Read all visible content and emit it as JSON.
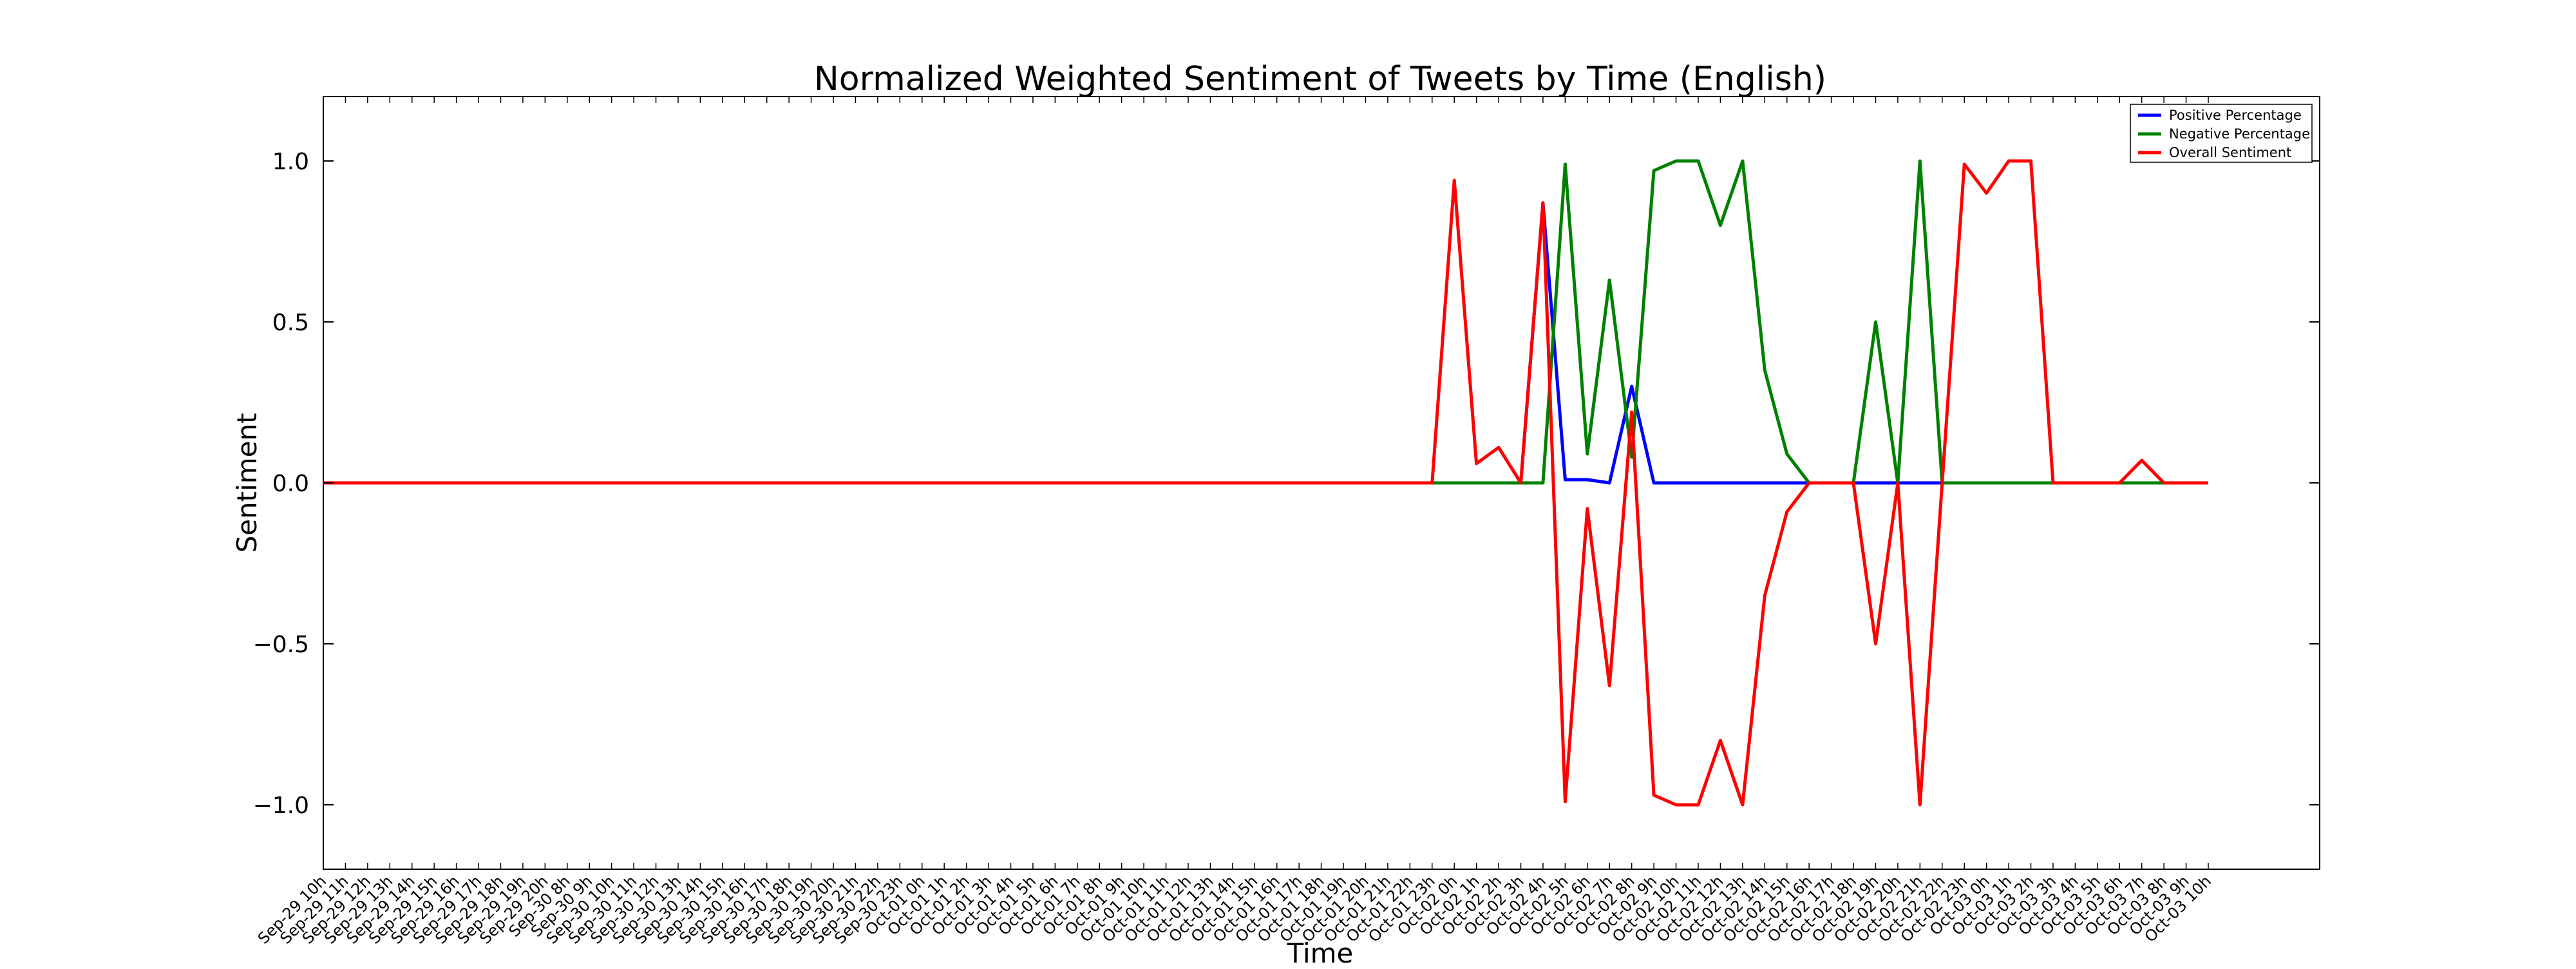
{
  "chart_data": {
    "type": "line",
    "title": "Normalized Weighted Sentiment of Tweets by Time (English)",
    "xlabel": "Time",
    "ylabel": "Sentiment",
    "ylim": [
      -1.2,
      1.2
    ],
    "yticks": [
      "−1.0",
      "−0.5",
      "0.0",
      "0.5",
      "1.0"
    ],
    "ytick_values": [
      -1.0,
      -0.5,
      0.0,
      0.5,
      1.0
    ],
    "legend_placement": "top-right",
    "grid": false,
    "categories": [
      "Sep-29 10h",
      "Sep-29 11h",
      "Sep-29 12h",
      "Sep-29 13h",
      "Sep-29 14h",
      "Sep-29 15h",
      "Sep-29 16h",
      "Sep-29 17h",
      "Sep-29 18h",
      "Sep-29 19h",
      "Sep-29 20h",
      "Sep-30 8h",
      "Sep-30 9h",
      "Sep-30 10h",
      "Sep-30 11h",
      "Sep-30 12h",
      "Sep-30 13h",
      "Sep-30 14h",
      "Sep-30 15h",
      "Sep-30 16h",
      "Sep-30 17h",
      "Sep-30 18h",
      "Sep-30 19h",
      "Sep-30 20h",
      "Sep-30 21h",
      "Sep-30 22h",
      "Sep-30 23h",
      "Oct-01 0h",
      "Oct-01 1h",
      "Oct-01 2h",
      "Oct-01 3h",
      "Oct-01 4h",
      "Oct-01 5h",
      "Oct-01 6h",
      "Oct-01 7h",
      "Oct-01 8h",
      "Oct-01 9h",
      "Oct-01 10h",
      "Oct-01 11h",
      "Oct-01 12h",
      "Oct-01 13h",
      "Oct-01 14h",
      "Oct-01 15h",
      "Oct-01 16h",
      "Oct-01 17h",
      "Oct-01 18h",
      "Oct-01 19h",
      "Oct-01 20h",
      "Oct-01 21h",
      "Oct-01 22h",
      "Oct-01 23h",
      "Oct-02 0h",
      "Oct-02 1h",
      "Oct-02 2h",
      "Oct-02 3h",
      "Oct-02 4h",
      "Oct-02 5h",
      "Oct-02 6h",
      "Oct-02 7h",
      "Oct-02 8h",
      "Oct-02 9h",
      "Oct-02 10h",
      "Oct-02 11h",
      "Oct-02 12h",
      "Oct-02 13h",
      "Oct-02 14h",
      "Oct-02 15h",
      "Oct-02 16h",
      "Oct-02 17h",
      "Oct-02 18h",
      "Oct-02 19h",
      "Oct-02 20h",
      "Oct-02 21h",
      "Oct-02 22h",
      "Oct-02 23h",
      "Oct-03 0h",
      "Oct-03 1h",
      "Oct-03 2h",
      "Oct-03 3h",
      "Oct-03 4h",
      "Oct-03 5h",
      "Oct-03 6h",
      "Oct-03 7h",
      "Oct-03 8h",
      "Oct-03 9h",
      "Oct-03 10h"
    ],
    "series": [
      {
        "name": "Positive Percentage",
        "color": "#0000ff",
        "values": [
          0,
          0,
          0,
          0,
          0,
          0,
          0,
          0,
          0,
          0,
          0,
          0,
          0,
          0,
          0,
          0,
          0,
          0,
          0,
          0,
          0,
          0,
          0,
          0,
          0,
          0,
          0,
          0,
          0,
          0,
          0,
          0,
          0,
          0,
          0,
          0,
          0,
          0,
          0,
          0,
          0,
          0,
          0,
          0,
          0,
          0,
          0,
          0,
          0,
          0,
          0,
          0,
          0,
          0,
          0,
          0.87,
          0.01,
          0.01,
          0,
          0.3,
          0,
          0,
          0,
          0,
          0,
          0,
          0,
          0,
          0,
          0,
          0,
          0,
          0,
          0,
          0,
          0,
          0,
          0,
          0,
          0,
          0,
          0,
          0,
          0,
          0,
          0
        ]
      },
      {
        "name": "Negative Percentage",
        "color": "#008000",
        "values": [
          0,
          0,
          0,
          0,
          0,
          0,
          0,
          0,
          0,
          0,
          0,
          0,
          0,
          0,
          0,
          0,
          0,
          0,
          0,
          0,
          0,
          0,
          0,
          0,
          0,
          0,
          0,
          0,
          0,
          0,
          0,
          0,
          0,
          0,
          0,
          0,
          0,
          0,
          0,
          0,
          0,
          0,
          0,
          0,
          0,
          0,
          0,
          0,
          0,
          0,
          0,
          0,
          0,
          0,
          0,
          0,
          0.99,
          0.09,
          0.63,
          0.08,
          0.97,
          1.0,
          1.0,
          0.8,
          1.0,
          0.35,
          0.09,
          0,
          0,
          0,
          0.5,
          0,
          1.0,
          0,
          0,
          0,
          0,
          0,
          0,
          0,
          0,
          0,
          0,
          0,
          0,
          0
        ]
      },
      {
        "name": "Overall Sentiment",
        "color": "#ff0000",
        "values": [
          0,
          0,
          0,
          0,
          0,
          0,
          0,
          0,
          0,
          0,
          0,
          0,
          0,
          0,
          0,
          0,
          0,
          0,
          0,
          0,
          0,
          0,
          0,
          0,
          0,
          0,
          0,
          0,
          0,
          0,
          0,
          0,
          0,
          0,
          0,
          0,
          0,
          0,
          0,
          0,
          0,
          0,
          0,
          0,
          0,
          0,
          0,
          0,
          0,
          0,
          0,
          0.94,
          0.06,
          0.11,
          0,
          0.87,
          -0.99,
          -0.08,
          -0.63,
          0.22,
          -0.97,
          -1.0,
          -1.0,
          -0.8,
          -1.0,
          -0.35,
          -0.09,
          0,
          0,
          0,
          -0.5,
          0,
          -1.0,
          0,
          0.99,
          0.9,
          1.0,
          1.0,
          0,
          0,
          0,
          0,
          0.07,
          0,
          0,
          0
        ]
      }
    ]
  }
}
